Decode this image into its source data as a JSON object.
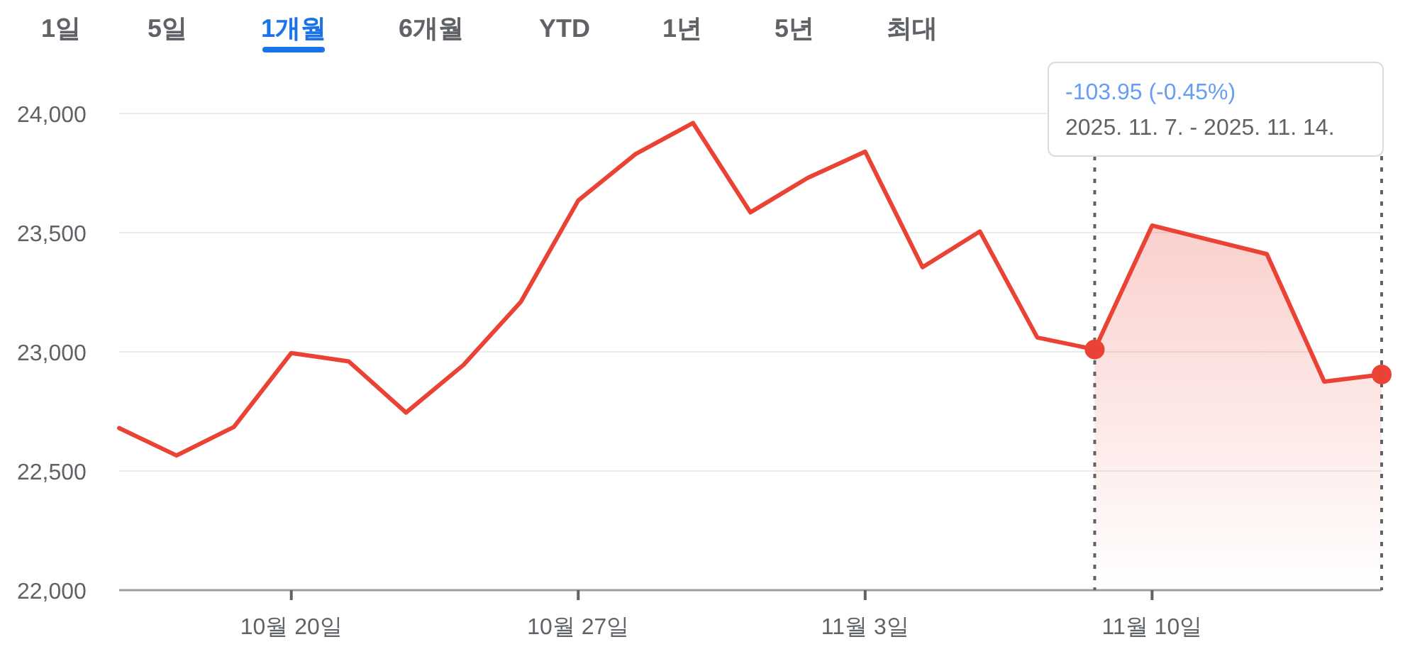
{
  "chart_data": {
    "type": "line",
    "categories": [
      null,
      null,
      null,
      "10월 20일",
      null,
      null,
      null,
      null,
      "10월 27일",
      null,
      null,
      null,
      null,
      "11월 3일",
      null,
      null,
      null,
      null,
      "11월 10일",
      null,
      null,
      null,
      null
    ],
    "values": [
      22680,
      22565,
      22685,
      22995,
      22960,
      22745,
      22945,
      23210,
      23635,
      23830,
      23960,
      23585,
      23730,
      23840,
      23355,
      23505,
      23060,
      23010,
      23530,
      23470,
      23410,
      22875,
      22905
    ],
    "color": "#ea4335",
    "ylim": [
      22000,
      24000
    ],
    "yticks": [
      {
        "value": 22000,
        "label": "22,000"
      },
      {
        "value": 22500,
        "label": "22,500"
      },
      {
        "value": 23000,
        "label": "23,000"
      },
      {
        "value": 23500,
        "label": "23,500"
      },
      {
        "value": 24000,
        "label": "24,000"
      }
    ],
    "grid": "y",
    "annotations": [
      "1일",
      "5일",
      "1개월",
      "6개월",
      "YTD",
      "1년",
      "5년",
      "최대",
      "-103.95 (-0.45%)",
      "2025. 11. 7. - 2025. 11. 14."
    ]
  }
}
